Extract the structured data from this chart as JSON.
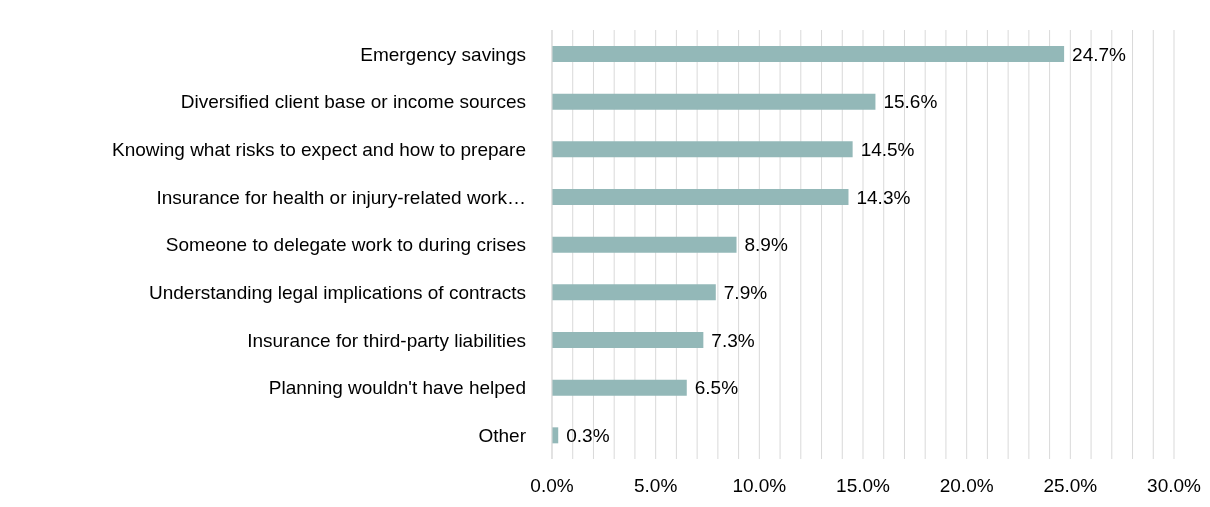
{
  "chart_data": {
    "type": "bar",
    "orientation": "horizontal",
    "categories": [
      "Emergency savings",
      "Diversified client base or income sources",
      "Knowing what risks to expect and how to prepare",
      "Insurance for health or injury-related work…",
      "Someone to delegate work to during crises",
      "Understanding legal implications of contracts",
      "Insurance for third-party liabilities",
      "Planning wouldn't have helped",
      "Other"
    ],
    "values": [
      24.7,
      15.6,
      14.5,
      14.3,
      8.9,
      7.9,
      7.3,
      6.5,
      0.3
    ],
    "value_labels": [
      "24.7%",
      "15.6%",
      "14.5%",
      "14.3%",
      "8.9%",
      "7.9%",
      "7.3%",
      "6.5%",
      "0.3%"
    ],
    "color": "#93b8b8",
    "xlim": [
      0,
      30
    ],
    "xticks": [
      {
        "value": 0,
        "label": "0.0%"
      },
      {
        "value": 1,
        "label": null
      },
      {
        "value": 2,
        "label": null
      },
      {
        "value": 3,
        "label": null
      },
      {
        "value": 4,
        "label": null
      },
      {
        "value": 5,
        "label": "5.0%"
      },
      {
        "value": 6,
        "label": null
      },
      {
        "value": 7,
        "label": null
      },
      {
        "value": 8,
        "label": null
      },
      {
        "value": 9,
        "label": null
      },
      {
        "value": 10,
        "label": "10.0%"
      },
      {
        "value": 11,
        "label": null
      },
      {
        "value": 12,
        "label": null
      },
      {
        "value": 13,
        "label": null
      },
      {
        "value": 14,
        "label": null
      },
      {
        "value": 15,
        "label": "15.0%"
      },
      {
        "value": 16,
        "label": null
      },
      {
        "value": 17,
        "label": null
      },
      {
        "value": 18,
        "label": null
      },
      {
        "value": 19,
        "label": null
      },
      {
        "value": 20,
        "label": "20.0%"
      },
      {
        "value": 21,
        "label": null
      },
      {
        "value": 22,
        "label": null
      },
      {
        "value": 23,
        "label": null
      },
      {
        "value": 24,
        "label": null
      },
      {
        "value": 25,
        "label": "25.0%"
      },
      {
        "value": 26,
        "label": null
      },
      {
        "value": 27,
        "label": null
      },
      {
        "value": 28,
        "label": null
      },
      {
        "value": 29,
        "label": null
      },
      {
        "value": 30,
        "label": "30.0%"
      }
    ],
    "grid": "x"
  }
}
